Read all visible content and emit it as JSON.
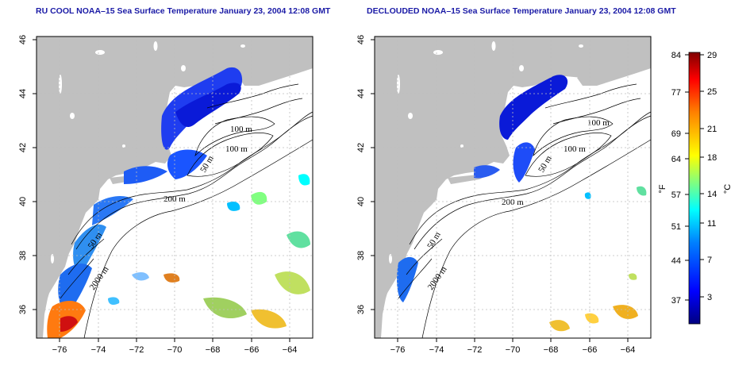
{
  "panels": [
    {
      "title": "RU COOL NOAA–15 Sea Surface Temperature January 23, 2004 12:08 GMT",
      "contour_labels": [
        "100 m",
        "100 m",
        "50 m",
        "200 m",
        "50 m",
        "2000 m"
      ]
    },
    {
      "title": "DECLOUDED NOAA–15 Sea Surface Temperature January 23, 2004 12:08 GMT",
      "contour_labels": [
        "100 m",
        "100 m",
        "50 m",
        "200 m",
        "50 m",
        "2000 m"
      ]
    }
  ],
  "axes": {
    "x_ticks": [
      "−76",
      "−74",
      "−72",
      "−70",
      "−68",
      "−66",
      "−64"
    ],
    "y_ticks": [
      "36",
      "38",
      "40",
      "42",
      "44",
      "46"
    ]
  },
  "colorbar": {
    "fahrenheit_label": "°F",
    "celsius_label": "°C",
    "fahrenheit_ticks": [
      "84",
      "77",
      "69",
      "64",
      "57",
      "51",
      "44",
      "37"
    ],
    "celsius_ticks": [
      "29",
      "25",
      "21",
      "18",
      "14",
      "11",
      "7",
      "3"
    ],
    "colors": [
      "#000080",
      "#0000ff",
      "#0080ff",
      "#00ffff",
      "#80ff80",
      "#ffff00",
      "#ff8000",
      "#ff0000",
      "#800000"
    ]
  },
  "colors": {
    "land": "#c0c0c0",
    "ocean_no_data": "#ffffff",
    "title": "#1a1aa6",
    "grid": "#bdbdbd"
  }
}
